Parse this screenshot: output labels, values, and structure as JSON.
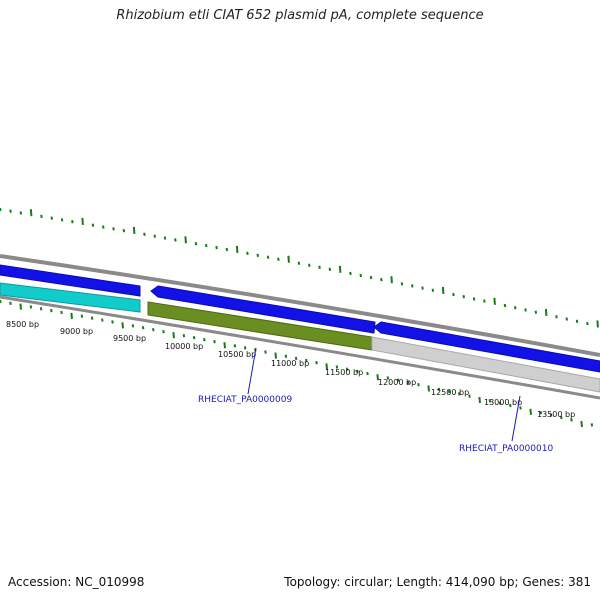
{
  "title": "Rhizobium etli CIAT 652 plasmid pA, complete sequence",
  "footer": {
    "accession": "Accession: NC_010998",
    "summary": "Topology: circular; Length: 414,090 bp; Genes: 381"
  },
  "colors": {
    "backbone": "#8a8a8a",
    "gene_blue": "#1212e6",
    "gene_cyan": "#12cccc",
    "gene_olive": "#6b8e23",
    "gene_grey": "#c8c8c8",
    "tick_green": "#1a7a1a",
    "callout": "#1a1ab8"
  },
  "scale": {
    "unit": "bp",
    "labels": [
      "8500 bp",
      "9000 bp",
      "9500 bp",
      "10000 bp",
      "10500 bp",
      "11000 bp",
      "11500 bp",
      "12000 bp",
      "12500 bp",
      "13000 bp",
      "13500 bp"
    ]
  },
  "gene_labels": [
    "RHECIAT_PA0000009",
    "RHECIAT_PA0000010"
  ]
}
